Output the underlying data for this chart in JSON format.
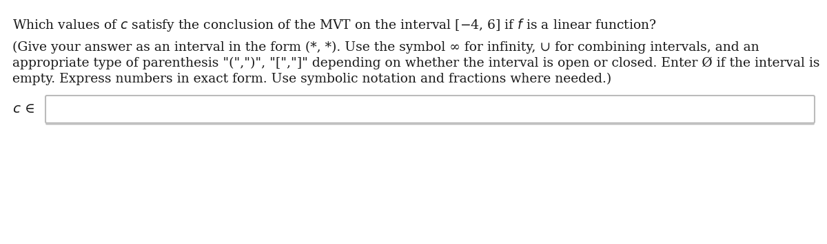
{
  "background_color": "#ffffff",
  "text_color": "#1a1a1a",
  "q_line": "Which values of $c$ satisfy the conclusion of the MVT on the interval [−4, 6] if $f$ is a linear function?",
  "i_line1": "(Give your answer as an interval in the form (*, *). Use the symbol ∞ for infinity, ∪ for combining intervals, and an",
  "i_line2": "appropriate type of parenthesis \"(\",\")\", \"[\",\"]\" depending on whether the interval is open or closed. Enter Ø if the interval is",
  "i_line3": "empty. Express numbers in exact form. Use symbolic notation and fractions where needed.)",
  "label": "$c$ ∈",
  "box_outer_color": "#bbbbbb",
  "box_inner_color": "#ffffff",
  "box_shadow_color": "#cccccc",
  "fontsize": 13.5,
  "fig_width": 12.0,
  "fig_height": 3.55,
  "dpi": 100
}
